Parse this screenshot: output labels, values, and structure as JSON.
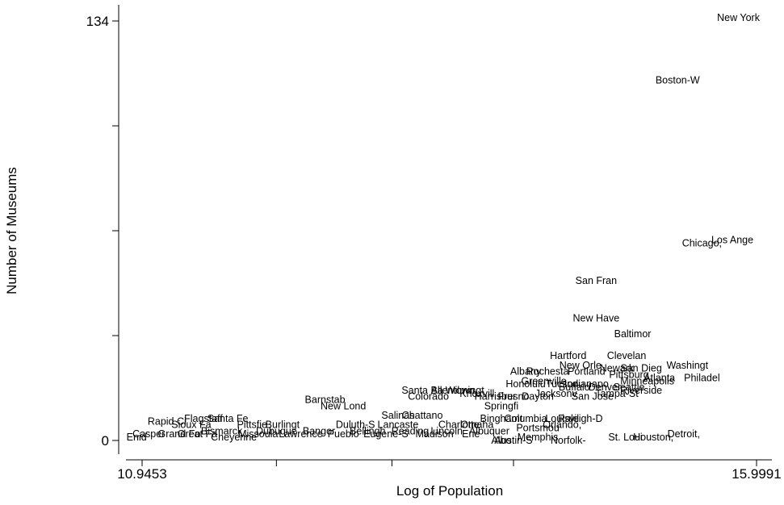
{
  "chart_data": {
    "type": "scatter",
    "marker": "text-label",
    "title": "",
    "xlabel": "Log of Population",
    "ylabel": "Number of Museums",
    "xlim": [
      10.9453,
      15.9991
    ],
    "ylim": [
      0,
      134
    ],
    "x_tick_labels": [
      {
        "value": 10.9453,
        "label": "10.9453"
      },
      {
        "value": 15.9991,
        "label": "15.9991"
      }
    ],
    "x_minor_ticks": [
      12.05,
      13.0,
      14.0
    ],
    "y_tick_labels": [
      {
        "value": 0,
        "label": "0"
      },
      {
        "value": 134,
        "label": "134"
      }
    ],
    "y_minor_ticks": [
      33.5,
      67,
      100.5
    ],
    "grid": false,
    "legend": "none",
    "points": [
      {
        "label": "New York",
        "x": 15.85,
        "y": 135
      },
      {
        "label": "Boston-W",
        "x": 15.35,
        "y": 115
      },
      {
        "label": "Los Ange",
        "x": 15.8,
        "y": 64
      },
      {
        "label": "Chicago,",
        "x": 15.55,
        "y": 63
      },
      {
        "label": "San Fran",
        "x": 14.68,
        "y": 51
      },
      {
        "label": "New Have",
        "x": 14.68,
        "y": 39
      },
      {
        "label": "Baltimor",
        "x": 14.98,
        "y": 34
      },
      {
        "label": "Hartford",
        "x": 14.45,
        "y": 27
      },
      {
        "label": "Clevelan",
        "x": 14.93,
        "y": 27
      },
      {
        "label": "Washingt",
        "x": 15.43,
        "y": 24
      },
      {
        "label": "Philadel",
        "x": 15.55,
        "y": 20
      },
      {
        "label": "New Orle",
        "x": 14.55,
        "y": 24
      },
      {
        "label": "San Dieg",
        "x": 15.05,
        "y": 23
      },
      {
        "label": "Newark",
        "x": 14.85,
        "y": 23
      },
      {
        "label": "Albany",
        "x": 14.1,
        "y": 22
      },
      {
        "label": "Rochesta",
        "x": 14.28,
        "y": 22
      },
      {
        "label": "Portland",
        "x": 14.6,
        "y": 22
      },
      {
        "label": "Pittsburg",
        "x": 14.95,
        "y": 21
      },
      {
        "label": "Atlanta",
        "x": 15.2,
        "y": 20
      },
      {
        "label": "Minneapolis",
        "x": 15.1,
        "y": 19
      },
      {
        "label": "Greenville",
        "x": 14.25,
        "y": 19
      },
      {
        "label": "Tucson",
        "x": 14.4,
        "y": 18
      },
      {
        "label": "Indianapo",
        "x": 14.6,
        "y": 18
      },
      {
        "label": "Honolulu",
        "x": 14.1,
        "y": 18
      },
      {
        "label": "Riverside",
        "x": 15.05,
        "y": 16
      },
      {
        "label": "Seattle",
        "x": 14.95,
        "y": 17
      },
      {
        "label": "Denver",
        "x": 14.75,
        "y": 17
      },
      {
        "label": "Buffalo",
        "x": 14.5,
        "y": 17
      },
      {
        "label": "Tampa-St",
        "x": 14.85,
        "y": 15
      },
      {
        "label": "San Jose",
        "x": 14.65,
        "y": 14
      },
      {
        "label": "Jacksonv",
        "x": 14.35,
        "y": 15
      },
      {
        "label": "Santa Ba",
        "x": 13.25,
        "y": 16
      },
      {
        "label": "Allentown",
        "x": 13.5,
        "y": 16
      },
      {
        "label": "Wilmingt",
        "x": 13.6,
        "y": 16
      },
      {
        "label": "Knoxvill",
        "x": 13.7,
        "y": 15
      },
      {
        "label": "Colorado",
        "x": 13.3,
        "y": 14
      },
      {
        "label": "Harrisbur",
        "x": 13.85,
        "y": 14
      },
      {
        "label": "Fresno",
        "x": 14.0,
        "y": 14
      },
      {
        "label": "Dayton",
        "x": 14.2,
        "y": 14
      },
      {
        "label": "Springfi",
        "x": 13.9,
        "y": 11
      },
      {
        "label": "Barnstab",
        "x": 12.45,
        "y": 13
      },
      {
        "label": "New Lond",
        "x": 12.6,
        "y": 11
      },
      {
        "label": "Salinas",
        "x": 13.05,
        "y": 8
      },
      {
        "label": "Chattano",
        "x": 13.25,
        "y": 8
      },
      {
        "label": "Binghamt",
        "x": 13.9,
        "y": 7
      },
      {
        "label": "Columbia",
        "x": 14.1,
        "y": 7
      },
      {
        "label": "Louisvil",
        "x": 14.4,
        "y": 7
      },
      {
        "label": "Raleigh-D",
        "x": 14.55,
        "y": 7
      },
      {
        "label": "Orlando,",
        "x": 14.4,
        "y": 5
      },
      {
        "label": "Portsmou",
        "x": 14.2,
        "y": 4
      },
      {
        "label": "Flagstaff",
        "x": 11.45,
        "y": 7
      },
      {
        "label": "Santa Fe",
        "x": 11.65,
        "y": 7
      },
      {
        "label": "Rapid Ci",
        "x": 11.15,
        "y": 6
      },
      {
        "label": "Sioux Fa",
        "x": 11.35,
        "y": 5
      },
      {
        "label": "Pittsfie",
        "x": 11.85,
        "y": 5
      },
      {
        "label": "Burlingt",
        "x": 12.1,
        "y": 5
      },
      {
        "label": "Duluth-S",
        "x": 12.7,
        "y": 5
      },
      {
        "label": "Lancaste",
        "x": 13.05,
        "y": 5
      },
      {
        "label": "Charlotte",
        "x": 13.55,
        "y": 5
      },
      {
        "label": "Omaha",
        "x": 13.7,
        "y": 5
      },
      {
        "label": "Casper",
        "x": 11.0,
        "y": 2
      },
      {
        "label": "Enid",
        "x": 10.9,
        "y": 1
      },
      {
        "label": "Grand Fo",
        "x": 11.25,
        "y": 2
      },
      {
        "label": "Great Fa",
        "x": 11.4,
        "y": 2
      },
      {
        "label": "Bismarck",
        "x": 11.6,
        "y": 3
      },
      {
        "label": "Cheyenne",
        "x": 11.7,
        "y": 1
      },
      {
        "label": "Missoula",
        "x": 11.9,
        "y": 2
      },
      {
        "label": "Dubuque",
        "x": 12.05,
        "y": 3
      },
      {
        "label": "Lawrence",
        "x": 12.25,
        "y": 2
      },
      {
        "label": "Bangor",
        "x": 12.4,
        "y": 3
      },
      {
        "label": "Pueblo",
        "x": 12.6,
        "y": 2
      },
      {
        "label": "Bellingh",
        "x": 12.8,
        "y": 3
      },
      {
        "label": "Eugene-S",
        "x": 12.95,
        "y": 2
      },
      {
        "label": "Reading",
        "x": 13.15,
        "y": 3
      },
      {
        "label": "Madison",
        "x": 13.35,
        "y": 2
      },
      {
        "label": "Lincoln",
        "x": 13.45,
        "y": 3
      },
      {
        "label": "Erie",
        "x": 13.65,
        "y": 2
      },
      {
        "label": "Albuquer",
        "x": 13.8,
        "y": 3
      },
      {
        "label": "Albo",
        "x": 13.9,
        "y": 0
      },
      {
        "label": "Austin-S",
        "x": 14.0,
        "y": 0
      },
      {
        "label": "Memphis",
        "x": 14.2,
        "y": 1
      },
      {
        "label": "Norfolk-",
        "x": 14.45,
        "y": 0
      },
      {
        "label": "St. Loui",
        "x": 14.92,
        "y": 1
      },
      {
        "label": "Houston,",
        "x": 15.15,
        "y": 1
      },
      {
        "label": "Detroit,",
        "x": 15.4,
        "y": 2
      }
    ]
  }
}
